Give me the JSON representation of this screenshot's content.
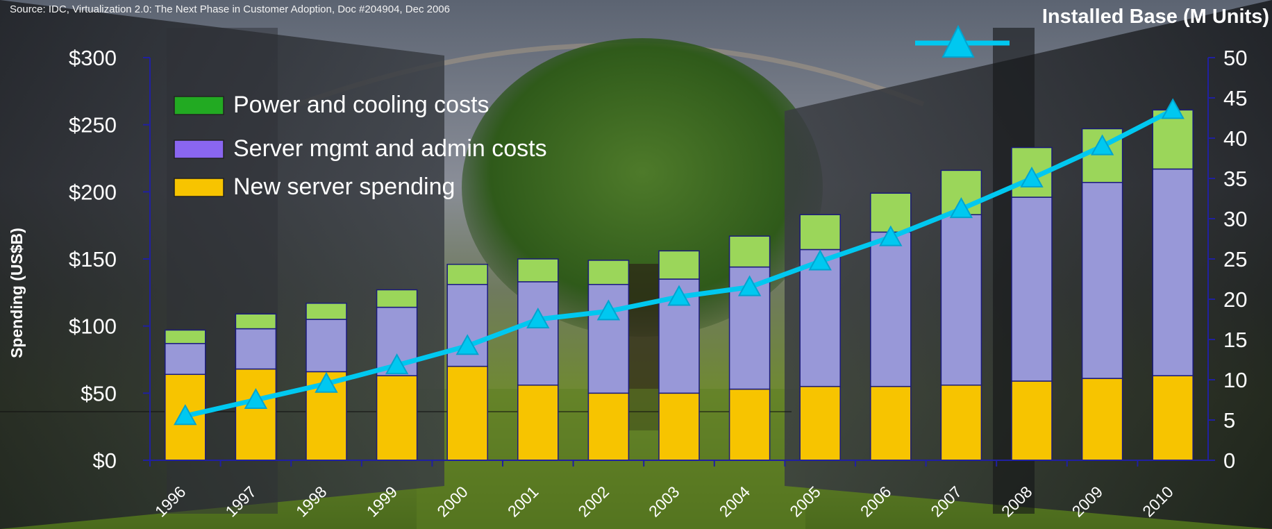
{
  "source_note": "Source: IDC, Virtualization 2.0: The Next Phase in Customer Adoption,  Doc #204904, Dec 2006",
  "colors": {
    "power": "#9bd65a",
    "mgmt": "#9898d8",
    "new_server": "#f7c400",
    "bar_outline": "#1a1a7a",
    "line": "#00c8f0",
    "axis": "#2020a0"
  },
  "chart_data": {
    "type": "bar",
    "stacked": true,
    "categories": [
      "1996",
      "1997",
      "1998",
      "1999",
      "2000",
      "2001",
      "2002",
      "2003",
      "2004",
      "2005",
      "2006",
      "2007",
      "2008",
      "2009",
      "2010"
    ],
    "series": [
      {
        "name": "New server spending",
        "values": [
          64,
          68,
          66,
          63,
          70,
          56,
          50,
          50,
          53,
          55,
          55,
          56,
          59,
          61,
          63
        ]
      },
      {
        "name": "Server mgmt and admin costs",
        "values": [
          23,
          30,
          39,
          51,
          61,
          77,
          81,
          85,
          91,
          102,
          115,
          127,
          137,
          146,
          154
        ]
      },
      {
        "name": "Power and cooling costs",
        "values": [
          10,
          11,
          12,
          13,
          15,
          17,
          18,
          21,
          23,
          26,
          29,
          33,
          37,
          40,
          44
        ]
      }
    ],
    "line_series": {
      "name": "Installed Base (M Units)",
      "values": [
        5.5,
        7.5,
        9.5,
        11.8,
        14.2,
        17.5,
        18.5,
        20.3,
        21.5,
        24.7,
        27.7,
        31.2,
        35,
        39,
        43.5
      ]
    },
    "ylabel": "Spending (US$B)",
    "y2label": "Installed Base (M Units)",
    "ylim": [
      0,
      300
    ],
    "y2lim": [
      0,
      50
    ],
    "yticks": [
      "$0",
      "$50",
      "$100",
      "$150",
      "$200",
      "$250",
      "$300"
    ],
    "y2ticks": [
      "0",
      "5",
      "10",
      "15",
      "20",
      "25",
      "30",
      "35",
      "40",
      "45",
      "50"
    ],
    "legend": [
      "Power and cooling costs",
      "Server mgmt and admin costs",
      "New server spending"
    ],
    "legend_position": "top-left",
    "grid": false
  }
}
